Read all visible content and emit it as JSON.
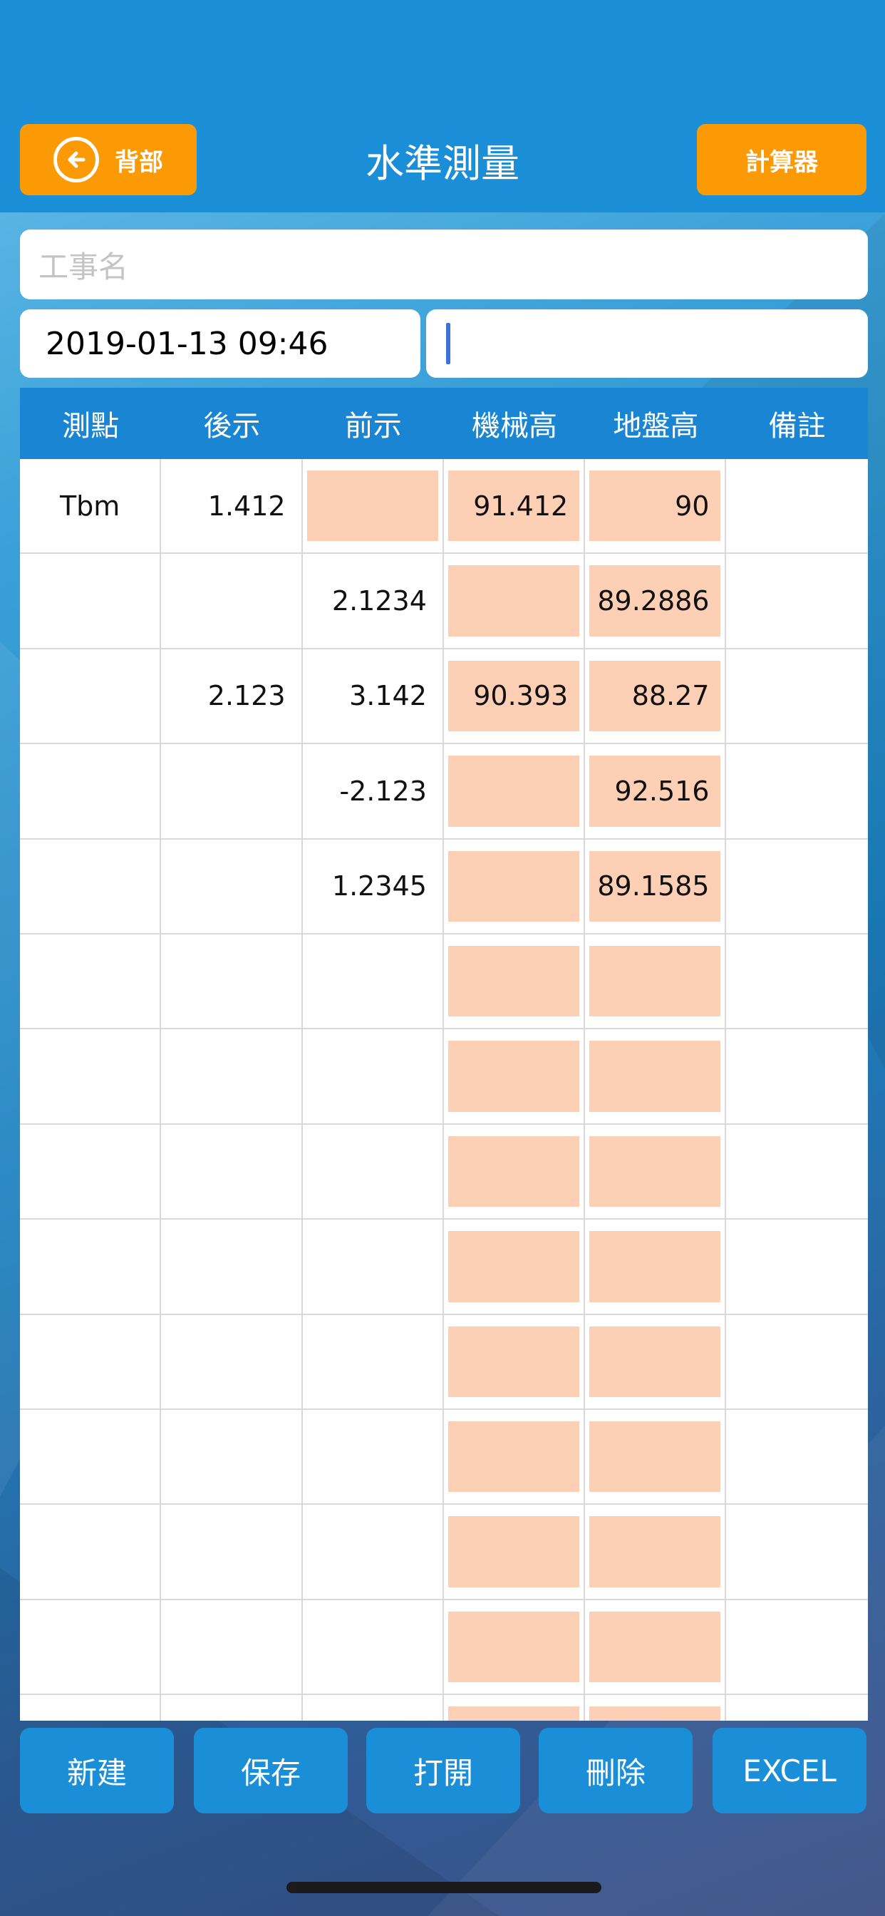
{
  "header": {
    "title": "水準測量",
    "back_label": "背部",
    "calc_label": "計算器"
  },
  "form": {
    "project_placeholder": "工事名",
    "date_value": "2019-01-13 09:46",
    "note_value": ""
  },
  "table": {
    "columns": [
      "測點",
      "後示",
      "前示",
      "機械高",
      "地盤高",
      "備註"
    ],
    "rows": [
      [
        "Tbm",
        "1.412",
        "",
        "91.412",
        "90",
        ""
      ],
      [
        "",
        "",
        "2.1234",
        "",
        "89.2886",
        ""
      ],
      [
        "",
        "2.123",
        "3.142",
        "90.393",
        "88.27",
        ""
      ],
      [
        "",
        "",
        "-2.123",
        "",
        "92.516",
        ""
      ],
      [
        "",
        "",
        "1.2345",
        "",
        "89.1585",
        ""
      ],
      [
        "",
        "",
        "",
        "",
        "",
        ""
      ],
      [
        "",
        "",
        "",
        "",
        "",
        ""
      ],
      [
        "",
        "",
        "",
        "",
        "",
        ""
      ],
      [
        "",
        "",
        "",
        "",
        "",
        ""
      ],
      [
        "",
        "",
        "",
        "",
        "",
        ""
      ],
      [
        "",
        "",
        "",
        "",
        "",
        ""
      ],
      [
        "",
        "",
        "",
        "",
        "",
        ""
      ],
      [
        "",
        "",
        "",
        "",
        "",
        ""
      ],
      [
        "",
        "",
        "",
        "",
        "",
        ""
      ]
    ]
  },
  "toolbar": {
    "new_label": "新建",
    "save_label": "保存",
    "open_label": "打開",
    "delete_label": "刪除",
    "excel_label": "EXCEL"
  },
  "colors": {
    "accent_orange": "#fc9a05",
    "header_blue": "#1a8fd8",
    "calc_cell": "#fdcfb4"
  }
}
